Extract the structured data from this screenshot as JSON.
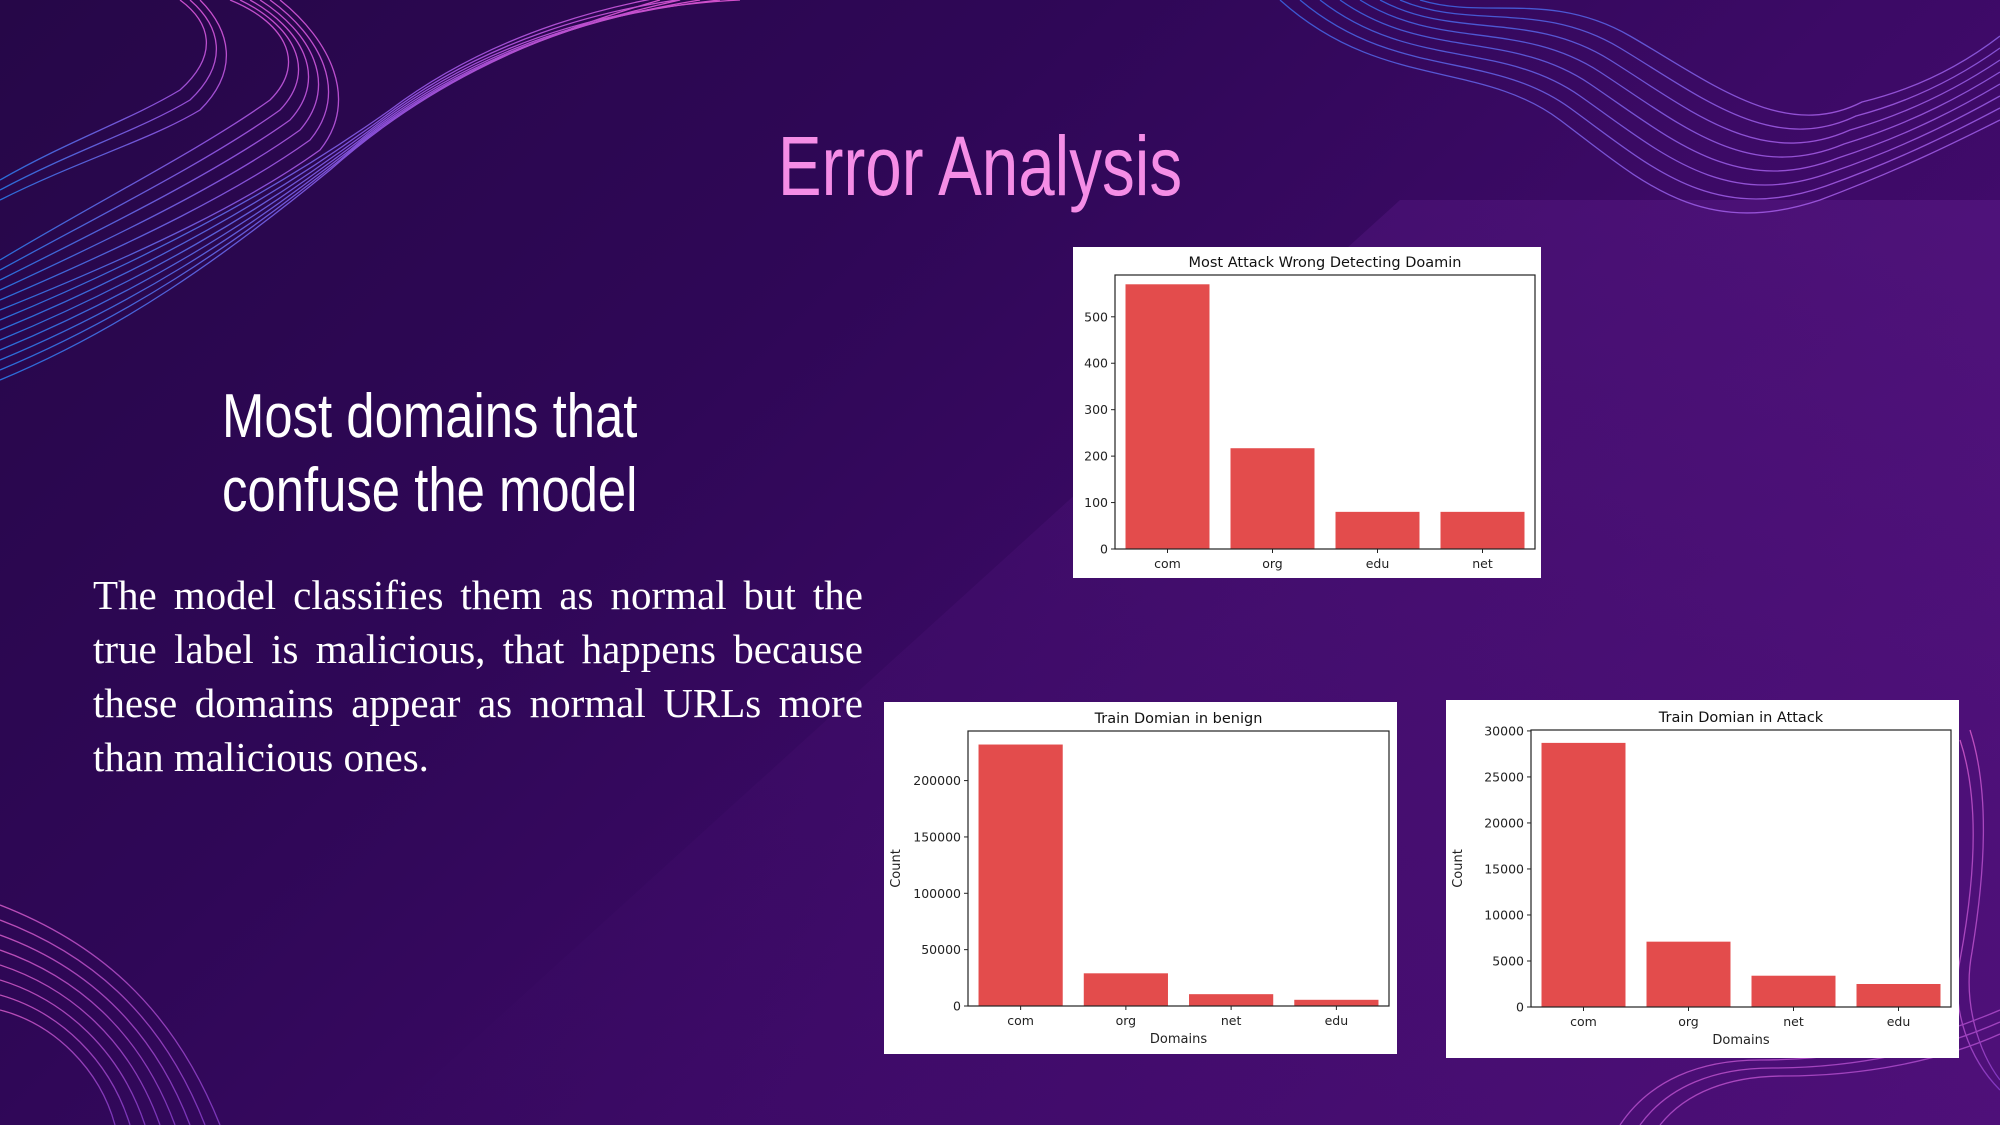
{
  "slide": {
    "title": "Error Analysis",
    "subtitle_line1": "Most domains that",
    "subtitle_line2": "confuse the model",
    "body": "The model classifies them as normal but the true label is malicious, that happens because these domains appear as normal URLs more than malicious ones."
  },
  "colors": {
    "bar": "#e34c4c",
    "title": "#f58de6",
    "background": "#330858"
  },
  "chart_data": [
    {
      "type": "bar",
      "title": "Most Attack Wrong Detecting Doamin",
      "xlabel": "",
      "ylabel": "",
      "categories": [
        "com",
        "org",
        "edu",
        "net"
      ],
      "values": [
        570,
        217,
        80,
        80
      ],
      "ylim": [
        0,
        590
      ],
      "yticks": [
        0,
        100,
        200,
        300,
        400,
        500
      ],
      "grid": false,
      "legend": "none"
    },
    {
      "type": "bar",
      "title": "Train Domian in benign",
      "xlabel": "Domains",
      "ylabel": "Count",
      "categories": [
        "com",
        "org",
        "net",
        "edu"
      ],
      "values": [
        232000,
        29000,
        10500,
        5500
      ],
      "ylim": [
        0,
        244000
      ],
      "yticks": [
        0,
        50000,
        100000,
        150000,
        200000
      ],
      "grid": false,
      "legend": "none"
    },
    {
      "type": "bar",
      "title": "Train Domian in Attack",
      "xlabel": "Domains",
      "ylabel": "Count",
      "categories": [
        "com",
        "org",
        "net",
        "edu"
      ],
      "values": [
        28700,
        7100,
        3400,
        2500
      ],
      "ylim": [
        0,
        30100
      ],
      "yticks": [
        0,
        5000,
        10000,
        15000,
        20000,
        25000,
        30000
      ],
      "grid": false,
      "legend": "none"
    }
  ]
}
